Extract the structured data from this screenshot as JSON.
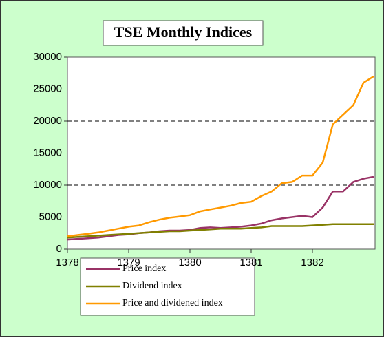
{
  "chart_data": {
    "type": "line",
    "title": "TSE Monthly Indices",
    "x": [
      1378.0,
      1378.167,
      1378.333,
      1378.5,
      1378.667,
      1378.833,
      1379.0,
      1379.167,
      1379.333,
      1379.5,
      1379.667,
      1379.833,
      1380.0,
      1380.167,
      1380.333,
      1380.5,
      1380.667,
      1380.833,
      1381.0,
      1381.167,
      1381.333,
      1381.5,
      1381.667,
      1381.833,
      1382.0,
      1382.167,
      1382.333,
      1382.5,
      1382.667,
      1382.833,
      1383.0
    ],
    "series": [
      {
        "name": "Price index",
        "color": "#993366",
        "values": [
          1500,
          1600,
          1700,
          1800,
          2000,
          2200,
          2300,
          2500,
          2600,
          2800,
          2900,
          2900,
          3000,
          3300,
          3400,
          3300,
          3400,
          3500,
          3700,
          4000,
          4500,
          4800,
          5000,
          5200,
          5000,
          6500,
          9000,
          9000,
          10500,
          11000,
          11300
        ]
      },
      {
        "name": "Dividend index",
        "color": "#808000",
        "values": [
          1800,
          1900,
          2000,
          2100,
          2200,
          2300,
          2400,
          2500,
          2600,
          2700,
          2800,
          2800,
          2900,
          3000,
          3100,
          3200,
          3200,
          3200,
          3300,
          3400,
          3600,
          3600,
          3600,
          3600,
          3700,
          3800,
          3900,
          3900,
          3900,
          3900,
          3900
        ]
      },
      {
        "name": "Price and dividened index",
        "color": "#ff9900",
        "values": [
          2000,
          2200,
          2400,
          2600,
          2900,
          3200,
          3500,
          3700,
          4200,
          4600,
          4900,
          5100,
          5300,
          5900,
          6200,
          6500,
          6800,
          7200,
          7400,
          8300,
          9000,
          10300,
          10500,
          11500,
          11500,
          13500,
          19500,
          21000,
          22500,
          26000,
          27000
        ]
      }
    ],
    "xlim": [
      1378,
      1383
    ],
    "xticks": [
      1378,
      1379,
      1380,
      1381,
      1382
    ],
    "ylim": [
      0,
      30000
    ],
    "yticks": [
      0,
      5000,
      10000,
      15000,
      20000,
      25000,
      30000
    ],
    "grid": true,
    "legend": "bottom"
  }
}
